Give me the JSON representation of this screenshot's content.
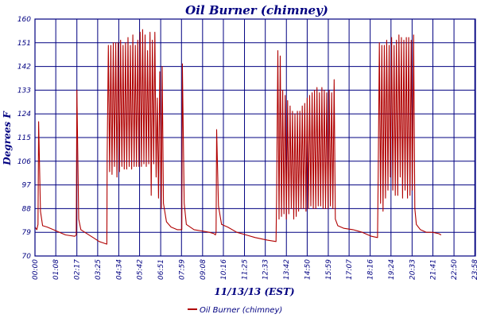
{
  "chart_data": {
    "type": "line",
    "title": "Oil Burner (chimney)",
    "xlabel": "11/13/13 (EST)",
    "ylabel": "Degrees F",
    "ylim": [
      70,
      160
    ],
    "yticks": [
      "70",
      "79",
      "88",
      "97",
      "106",
      "115",
      "124",
      "133",
      "142",
      "151",
      "160"
    ],
    "xticks": [
      "00:00",
      "01:08",
      "02:17",
      "03:25",
      "04:34",
      "05:42",
      "06:51",
      "07:59",
      "09:08",
      "10:16",
      "11:25",
      "12:33",
      "13:42",
      "14:50",
      "15:59",
      "17:07",
      "18:16",
      "19:24",
      "20:33",
      "21:41",
      "22:50",
      "23:58"
    ],
    "grid": true,
    "legend": {
      "position": "bottom-center",
      "entries": [
        "Oil Burner (chimney)"
      ]
    },
    "colors": {
      "series": "#b00000",
      "grid": "#000080",
      "text": "#000080"
    },
    "series": [
      {
        "name": "Oil Burner (chimney)",
        "points": [
          [
            0,
            81
          ],
          [
            6,
            80
          ],
          [
            10,
            82
          ],
          [
            12,
            121
          ],
          [
            18,
            87
          ],
          [
            25,
            81.5
          ],
          [
            40,
            81
          ],
          [
            60,
            80
          ],
          [
            80,
            79
          ],
          [
            100,
            78
          ],
          [
            130,
            77.5
          ],
          [
            135,
            78
          ],
          [
            137,
            133
          ],
          [
            143,
            84
          ],
          [
            150,
            80
          ],
          [
            170,
            78.5
          ],
          [
            190,
            77
          ],
          [
            210,
            75.5
          ],
          [
            235,
            74.5
          ],
          [
            236,
            108
          ],
          [
            240,
            150
          ],
          [
            244,
            102
          ],
          [
            248,
            150
          ],
          [
            252,
            101
          ],
          [
            256,
            151
          ],
          [
            260,
            104
          ],
          [
            264,
            151
          ],
          [
            268,
            100
          ],
          [
            272,
            151
          ],
          [
            276,
            102
          ],
          [
            280,
            152
          ],
          [
            284,
            104
          ],
          [
            288,
            150
          ],
          [
            292,
            103
          ],
          [
            296,
            151
          ],
          [
            300,
            103
          ],
          [
            304,
            153
          ],
          [
            308,
            104
          ],
          [
            312,
            150
          ],
          [
            316,
            103
          ],
          [
            320,
            154
          ],
          [
            324,
            104
          ],
          [
            328,
            150
          ],
          [
            332,
            104
          ],
          [
            336,
            152
          ],
          [
            340,
            104
          ],
          [
            344,
            155
          ],
          [
            348,
            104
          ],
          [
            352,
            156
          ],
          [
            356,
            105
          ],
          [
            360,
            154
          ],
          [
            364,
            104
          ],
          [
            368,
            148
          ],
          [
            372,
            105
          ],
          [
            376,
            155
          ],
          [
            380,
            93
          ],
          [
            384,
            152
          ],
          [
            388,
            105
          ],
          [
            392,
            155
          ],
          [
            396,
            100
          ],
          [
            400,
            130
          ],
          [
            404,
            92
          ],
          [
            408,
            140
          ],
          [
            413,
            88
          ],
          [
            416,
            142
          ],
          [
            420,
            90
          ],
          [
            430,
            83
          ],
          [
            445,
            81
          ],
          [
            465,
            80
          ],
          [
            478,
            80
          ],
          [
            480,
            80
          ],
          [
            482,
            143
          ],
          [
            488,
            90
          ],
          [
            495,
            82
          ],
          [
            520,
            80
          ],
          [
            545,
            79.5
          ],
          [
            570,
            79
          ],
          [
            585,
            78.5
          ],
          [
            590,
            78
          ],
          [
            592,
            79
          ],
          [
            594,
            118
          ],
          [
            600,
            89
          ],
          [
            610,
            82
          ],
          [
            630,
            81
          ],
          [
            660,
            79
          ],
          [
            690,
            78
          ],
          [
            720,
            77
          ],
          [
            760,
            76
          ],
          [
            788,
            75.5
          ],
          [
            790,
            92
          ],
          [
            794,
            148
          ],
          [
            798,
            84
          ],
          [
            802,
            146
          ],
          [
            806,
            85
          ],
          [
            810,
            133
          ],
          [
            814,
            86
          ],
          [
            818,
            131
          ],
          [
            822,
            84
          ],
          [
            826,
            129
          ],
          [
            830,
            86
          ],
          [
            834,
            127
          ],
          [
            838,
            88
          ],
          [
            842,
            125
          ],
          [
            846,
            84
          ],
          [
            850,
            124
          ],
          [
            854,
            85
          ],
          [
            858,
            125
          ],
          [
            862,
            87
          ],
          [
            866,
            125
          ],
          [
            870,
            88
          ],
          [
            874,
            127
          ],
          [
            878,
            88
          ],
          [
            882,
            128
          ],
          [
            886,
            87
          ],
          [
            890,
            130
          ],
          [
            894,
            88
          ],
          [
            898,
            131
          ],
          [
            902,
            89
          ],
          [
            906,
            132
          ],
          [
            910,
            88
          ],
          [
            914,
            133
          ],
          [
            918,
            88
          ],
          [
            922,
            134
          ],
          [
            926,
            89
          ],
          [
            930,
            132
          ],
          [
            934,
            89
          ],
          [
            938,
            134
          ],
          [
            942,
            88
          ],
          [
            946,
            133
          ],
          [
            950,
            88
          ],
          [
            954,
            132
          ],
          [
            958,
            88
          ],
          [
            962,
            133
          ],
          [
            966,
            89
          ],
          [
            970,
            132
          ],
          [
            974,
            88
          ],
          [
            978,
            137
          ],
          [
            982,
            84
          ],
          [
            990,
            81.5
          ],
          [
            1010,
            80.5
          ],
          [
            1040,
            80
          ],
          [
            1070,
            79
          ],
          [
            1100,
            77.5
          ],
          [
            1120,
            77
          ],
          [
            1122,
            100
          ],
          [
            1126,
            151
          ],
          [
            1130,
            90
          ],
          [
            1134,
            150
          ],
          [
            1138,
            87
          ],
          [
            1142,
            150
          ],
          [
            1146,
            92
          ],
          [
            1150,
            152
          ],
          [
            1154,
            95
          ],
          [
            1158,
            150
          ],
          [
            1162,
            100
          ],
          [
            1166,
            153
          ],
          [
            1170,
            95
          ],
          [
            1174,
            150
          ],
          [
            1178,
            93
          ],
          [
            1182,
            152
          ],
          [
            1186,
            93
          ],
          [
            1190,
            154
          ],
          [
            1194,
            100
          ],
          [
            1198,
            153
          ],
          [
            1202,
            92
          ],
          [
            1206,
            152
          ],
          [
            1210,
            95
          ],
          [
            1214,
            153
          ],
          [
            1218,
            92
          ],
          [
            1222,
            153
          ],
          [
            1226,
            93
          ],
          [
            1230,
            152
          ],
          [
            1234,
            95
          ],
          [
            1238,
            154
          ],
          [
            1242,
            88
          ],
          [
            1247,
            82
          ],
          [
            1260,
            80
          ],
          [
            1280,
            79
          ],
          [
            1300,
            79
          ],
          [
            1320,
            78.5
          ],
          [
            1328,
            78
          ]
        ]
      }
    ]
  }
}
